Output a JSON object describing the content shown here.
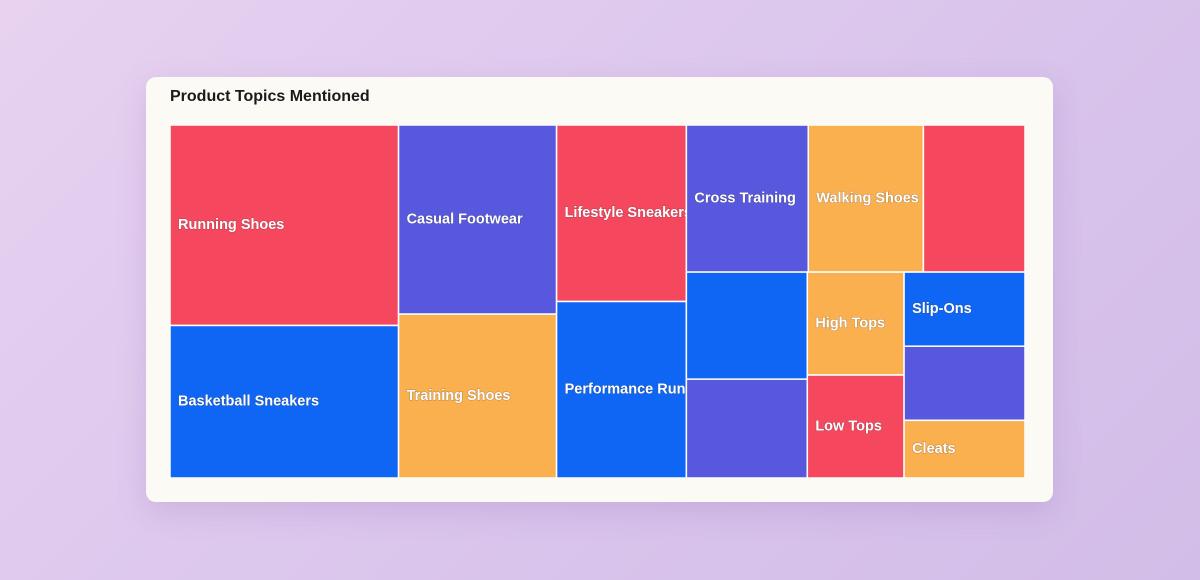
{
  "chart_data": {
    "type": "treemap",
    "title": "Product Topics Mentioned",
    "categories": [
      "Running Shoes",
      "Basketball Sneakers",
      "Casual Footwear",
      "Training Shoes",
      "Lifestyle Sneakers",
      "Performance Running",
      "Cross Training",
      "Walking Shoes",
      null,
      null,
      null,
      "High Tops",
      "Low Tops",
      "Slip-Ons",
      null,
      "Cleats"
    ],
    "values": [
      46,
      35,
      30,
      26,
      23,
      23,
      18,
      17,
      15,
      13,
      12,
      10,
      10,
      9,
      9,
      7
    ],
    "colors": [
      "#f5475e",
      "#0f66f5",
      "#5858de",
      "#fbb050",
      "#f5475e",
      "#0f66f5",
      "#5858de",
      "#fbb050",
      "#f5475e",
      "#0f66f5",
      "#5858de",
      "#fbb050",
      "#f5475e",
      "#0f66f5",
      "#5858de",
      "#fbb050"
    ]
  }
}
